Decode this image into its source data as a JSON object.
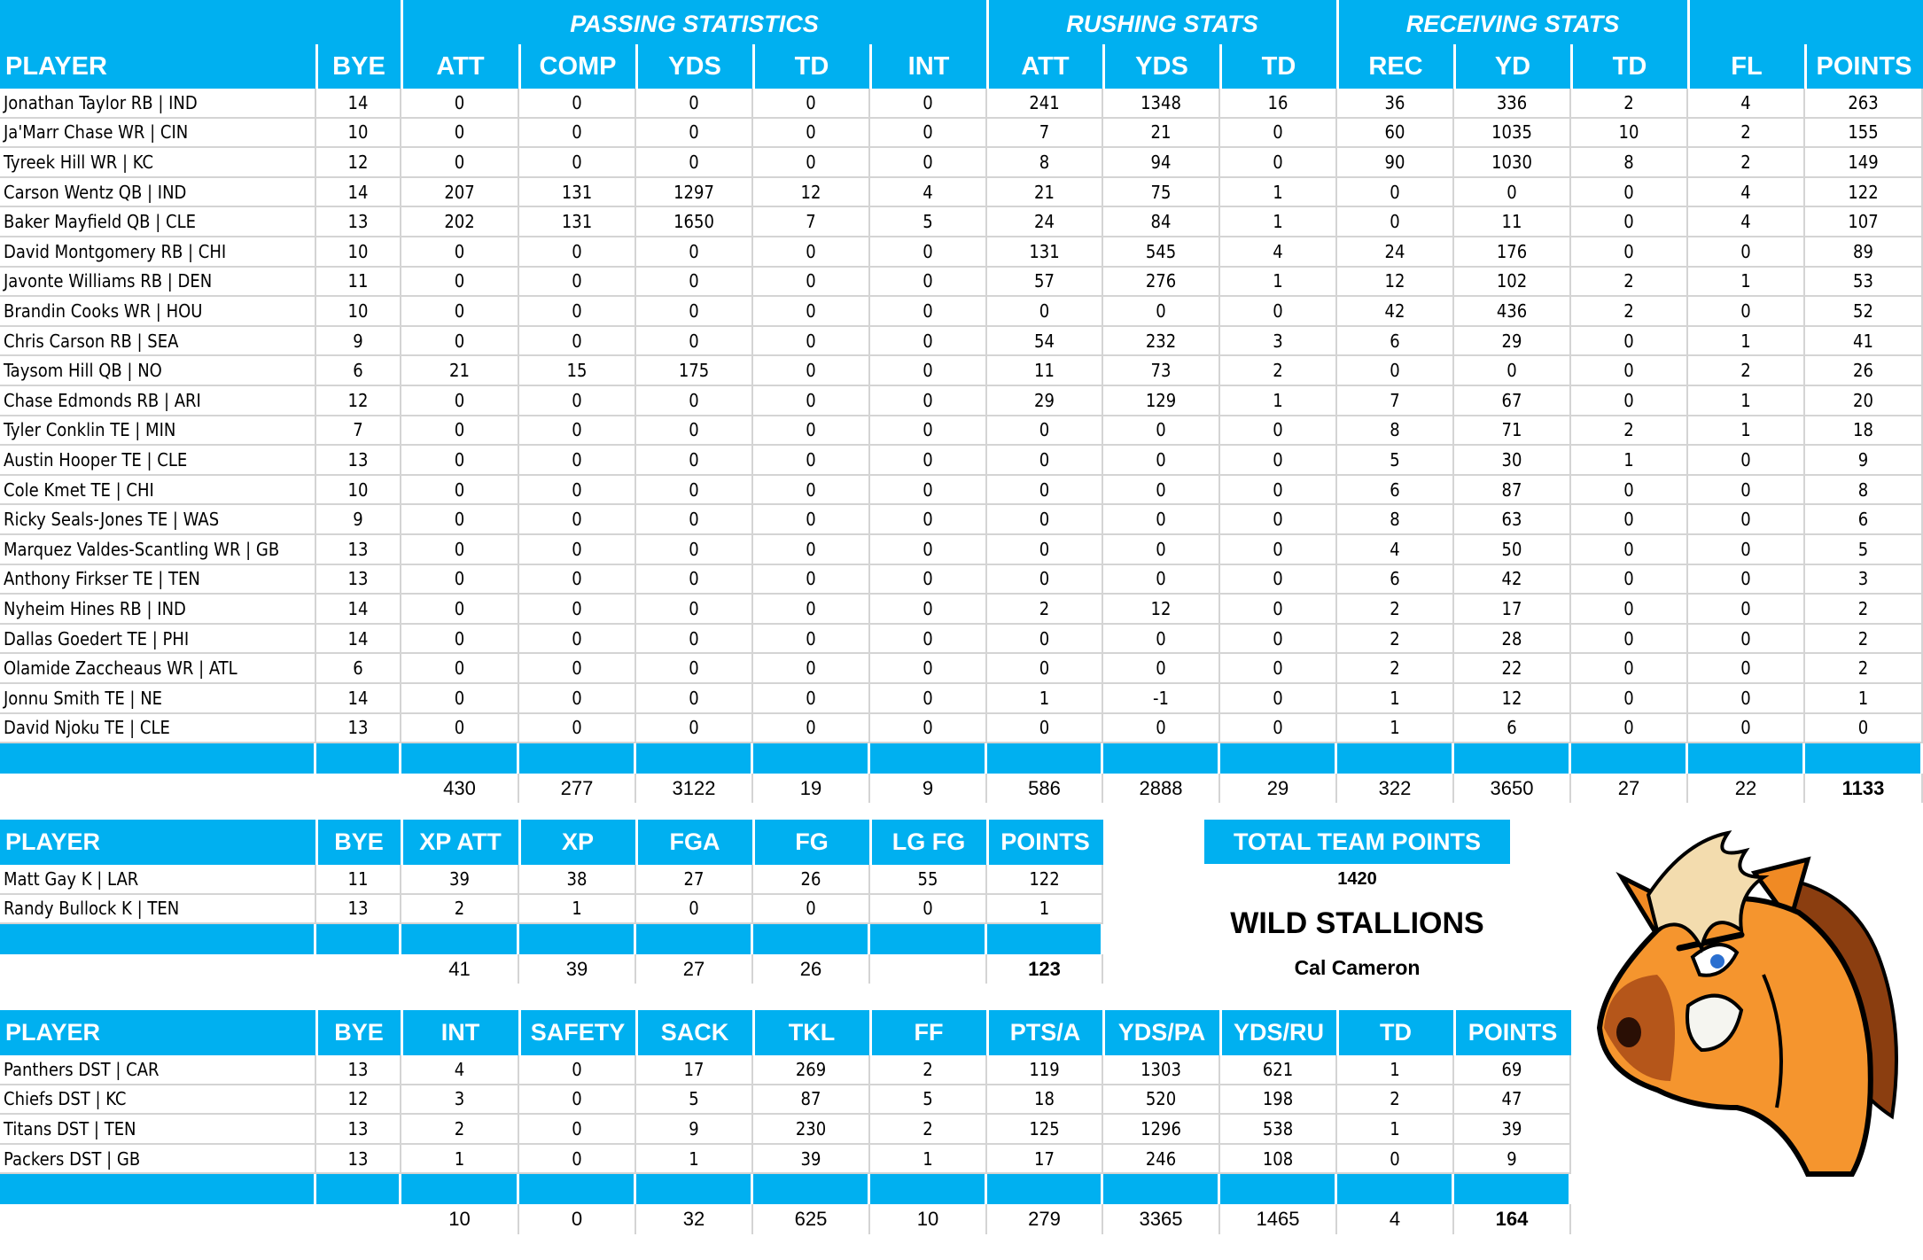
{
  "colors": {
    "header_blue": "#00b0f0",
    "grid": "#d4d4d4",
    "text": "#000000",
    "header_text": "#ffffff"
  },
  "offense": {
    "groups": [
      {
        "label": "PASSING STATISTICS"
      },
      {
        "label": "RUSHING STATS"
      },
      {
        "label": "RECEIVING STATS"
      }
    ],
    "columns": [
      "PLAYER",
      "BYE",
      "ATT",
      "COMP",
      "YDS",
      "TD",
      "INT",
      "ATT",
      "YDS",
      "TD",
      "REC",
      "YD",
      "TD",
      "FL",
      "POINTS"
    ],
    "rows": [
      [
        "Jonathan Taylor RB | IND",
        "14",
        "0",
        "0",
        "0",
        "0",
        "0",
        "241",
        "1348",
        "16",
        "36",
        "336",
        "2",
        "4",
        "263"
      ],
      [
        "Ja'Marr Chase WR | CIN",
        "10",
        "0",
        "0",
        "0",
        "0",
        "0",
        "7",
        "21",
        "0",
        "60",
        "1035",
        "10",
        "2",
        "155"
      ],
      [
        "Tyreek Hill WR | KC",
        "12",
        "0",
        "0",
        "0",
        "0",
        "0",
        "8",
        "94",
        "0",
        "90",
        "1030",
        "8",
        "2",
        "149"
      ],
      [
        "Carson Wentz QB | IND",
        "14",
        "207",
        "131",
        "1297",
        "12",
        "4",
        "21",
        "75",
        "1",
        "0",
        "0",
        "0",
        "4",
        "122"
      ],
      [
        "Baker Mayfield QB | CLE",
        "13",
        "202",
        "131",
        "1650",
        "7",
        "5",
        "24",
        "84",
        "1",
        "0",
        "11",
        "0",
        "4",
        "107"
      ],
      [
        "David Montgomery RB | CHI",
        "10",
        "0",
        "0",
        "0",
        "0",
        "0",
        "131",
        "545",
        "4",
        "24",
        "176",
        "0",
        "0",
        "89"
      ],
      [
        "Javonte Williams RB | DEN",
        "11",
        "0",
        "0",
        "0",
        "0",
        "0",
        "57",
        "276",
        "1",
        "12",
        "102",
        "2",
        "1",
        "53"
      ],
      [
        "Brandin Cooks WR | HOU",
        "10",
        "0",
        "0",
        "0",
        "0",
        "0",
        "0",
        "0",
        "0",
        "42",
        "436",
        "2",
        "0",
        "52"
      ],
      [
        "Chris Carson RB | SEA",
        "9",
        "0",
        "0",
        "0",
        "0",
        "0",
        "54",
        "232",
        "3",
        "6",
        "29",
        "0",
        "1",
        "41"
      ],
      [
        "Taysom Hill QB | NO",
        "6",
        "21",
        "15",
        "175",
        "0",
        "0",
        "11",
        "73",
        "2",
        "0",
        "0",
        "0",
        "2",
        "26"
      ],
      [
        "Chase Edmonds RB | ARI",
        "12",
        "0",
        "0",
        "0",
        "0",
        "0",
        "29",
        "129",
        "1",
        "7",
        "67",
        "0",
        "1",
        "20"
      ],
      [
        "Tyler Conklin TE | MIN",
        "7",
        "0",
        "0",
        "0",
        "0",
        "0",
        "0",
        "0",
        "0",
        "8",
        "71",
        "2",
        "1",
        "18"
      ],
      [
        "Austin Hooper TE | CLE",
        "13",
        "0",
        "0",
        "0",
        "0",
        "0",
        "0",
        "0",
        "0",
        "5",
        "30",
        "1",
        "0",
        "9"
      ],
      [
        "Cole Kmet TE | CHI",
        "10",
        "0",
        "0",
        "0",
        "0",
        "0",
        "0",
        "0",
        "0",
        "6",
        "87",
        "0",
        "0",
        "8"
      ],
      [
        "Ricky Seals-Jones TE | WAS",
        "9",
        "0",
        "0",
        "0",
        "0",
        "0",
        "0",
        "0",
        "0",
        "8",
        "63",
        "0",
        "0",
        "6"
      ],
      [
        "Marquez Valdes-Scantling WR | GB",
        "13",
        "0",
        "0",
        "0",
        "0",
        "0",
        "0",
        "0",
        "0",
        "4",
        "50",
        "0",
        "0",
        "5"
      ],
      [
        "Anthony Firkser TE | TEN",
        "13",
        "0",
        "0",
        "0",
        "0",
        "0",
        "0",
        "0",
        "0",
        "6",
        "42",
        "0",
        "0",
        "3"
      ],
      [
        "Nyheim Hines RB | IND",
        "14",
        "0",
        "0",
        "0",
        "0",
        "0",
        "2",
        "12",
        "0",
        "2",
        "17",
        "0",
        "0",
        "2"
      ],
      [
        "Dallas Goedert TE | PHI",
        "14",
        "0",
        "0",
        "0",
        "0",
        "0",
        "0",
        "0",
        "0",
        "2",
        "28",
        "0",
        "0",
        "2"
      ],
      [
        "Olamide Zaccheaus WR | ATL",
        "6",
        "0",
        "0",
        "0",
        "0",
        "0",
        "0",
        "0",
        "0",
        "2",
        "22",
        "0",
        "0",
        "2"
      ],
      [
        "Jonnu Smith TE | NE",
        "14",
        "0",
        "0",
        "0",
        "0",
        "0",
        "1",
        "-1",
        "0",
        "1",
        "12",
        "0",
        "0",
        "1"
      ],
      [
        "David Njoku TE | CLE",
        "13",
        "0",
        "0",
        "0",
        "0",
        "0",
        "0",
        "0",
        "0",
        "1",
        "6",
        "0",
        "0",
        "0"
      ]
    ],
    "totals": [
      "",
      "",
      "430",
      "277",
      "3122",
      "19",
      "9",
      "586",
      "2888",
      "29",
      "322",
      "3650",
      "27",
      "22",
      "1133"
    ]
  },
  "kickers": {
    "columns": [
      "PLAYER",
      "BYE",
      "XP ATT",
      "XP",
      "FGA",
      "FG",
      "LG FG",
      "POINTS"
    ],
    "rows": [
      [
        "Matt Gay K | LAR",
        "11",
        "39",
        "38",
        "27",
        "26",
        "55",
        "122"
      ],
      [
        "Randy Bullock K | TEN",
        "13",
        "2",
        "1",
        "0",
        "0",
        "0",
        "1"
      ]
    ],
    "totals": [
      "",
      "",
      "41",
      "39",
      "27",
      "26",
      "",
      "123"
    ]
  },
  "defense": {
    "columns": [
      "PLAYER",
      "BYE",
      "INT",
      "SAFETY",
      "SACK",
      "TKL",
      "FF",
      "PTS/A",
      "YDS/PA",
      "YDS/RU",
      "TD",
      "POINTS"
    ],
    "rows": [
      [
        "Panthers DST | CAR",
        "13",
        "4",
        "0",
        "17",
        "269",
        "2",
        "119",
        "1303",
        "621",
        "1",
        "69"
      ],
      [
        "Chiefs DST | KC",
        "12",
        "3",
        "0",
        "5",
        "87",
        "5",
        "18",
        "520",
        "198",
        "2",
        "47"
      ],
      [
        "Titans DST | TEN",
        "13",
        "2",
        "0",
        "9",
        "230",
        "2",
        "125",
        "1296",
        "538",
        "1",
        "39"
      ],
      [
        "Packers DST | GB",
        "13",
        "1",
        "0",
        "1",
        "39",
        "1",
        "17",
        "246",
        "108",
        "0",
        "9"
      ]
    ],
    "totals": [
      "",
      "",
      "10",
      "0",
      "32",
      "625",
      "10",
      "279",
      "3365",
      "1465",
      "4",
      "164"
    ]
  },
  "team": {
    "total_label": "TOTAL TEAM POINTS",
    "total_points": "1420",
    "name": "WILD STALLIONS",
    "owner": "Cal Cameron",
    "logo_icon": "angry-horse-mascot-icon"
  }
}
